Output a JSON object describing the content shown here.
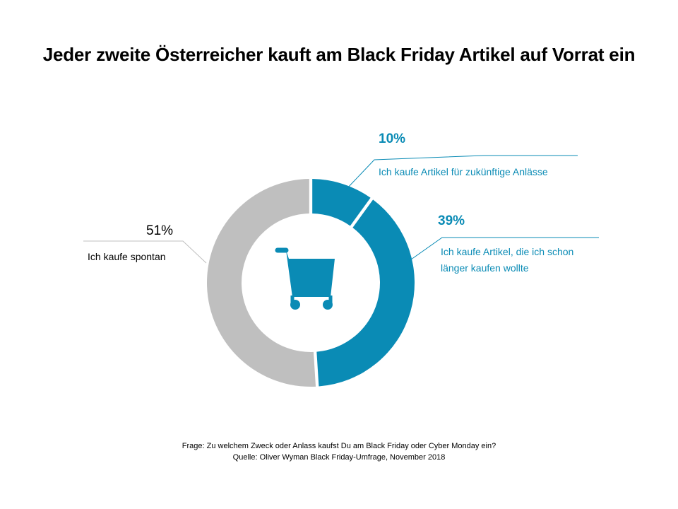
{
  "title": "Jeder zweite Österreicher kauft am Black Friday Artikel auf Vorrat ein",
  "center_icon": "shopping-cart-icon",
  "colors": {
    "accent": "#0a8bb5",
    "grey": "#bfbfbf",
    "line": "#0a8bb5",
    "grey_line": "#bfbfbf"
  },
  "chart_data": {
    "type": "pie",
    "donut": true,
    "title": "Jeder zweite Österreicher kauft am Black Friday Artikel auf Vorrat ein",
    "slices": [
      {
        "label": "Ich kaufe Artikel für zukünftige Anlässe",
        "value": 10,
        "value_label": "10%",
        "color": "#0a8bb5"
      },
      {
        "label": "Ich kaufe Artikel, die ich schon länger kaufen wollte",
        "value": 39,
        "value_label": "39%",
        "color": "#0a8bb5"
      },
      {
        "label": "Ich kaufe spontan",
        "value": 51,
        "value_label": "51%",
        "color": "#bfbfbf"
      }
    ]
  },
  "labels": {
    "s1_pct": "10%",
    "s1_text": "Ich kaufe Artikel für zukünftige Anlässe",
    "s2_pct": "39%",
    "s2_line1": "Ich kaufe Artikel, die ich schon",
    "s2_line2": "länger kaufen wollte",
    "s3_pct": "51%",
    "s3_text": "Ich kaufe spontan"
  },
  "footer": {
    "question": "Frage: Zu welchem Zweck oder Anlass kaufst Du am Black Friday oder Cyber Monday ein?",
    "source": "Quelle: Oliver Wyman Black Friday-Umfrage, November 2018"
  }
}
